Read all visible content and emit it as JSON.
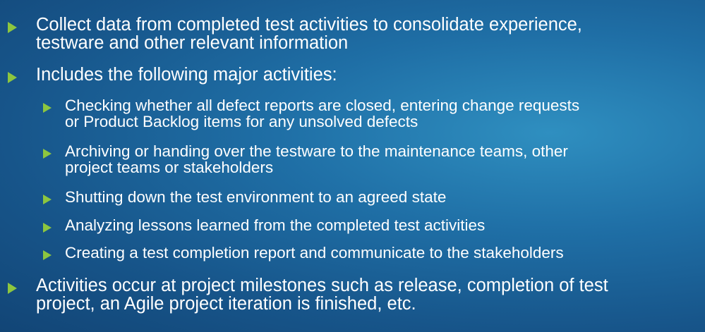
{
  "bullets": [
    {
      "text": "Collect data from completed test activities to consolidate experience,",
      "text_cont": "testware and other relevant information"
    },
    {
      "text": "Includes the following major activities:",
      "sub": [
        {
          "text": "Checking whether all defect reports are closed, entering change requests",
          "text_cont": "or Product Backlog items for any unsolved defects"
        },
        {
          "text": "Archiving or handing over the testware to the maintenance teams, other",
          "text_cont": "project teams or stakeholders"
        },
        {
          "text": "Shutting down the test environment to an agreed state"
        },
        {
          "text": "Analyzing lessons learned from the completed test activities"
        },
        {
          "text": "Creating a test completion report and communicate to the stakeholders"
        }
      ]
    },
    {
      "text": "Activities occur at project milestones such as release, completion of test",
      "text_cont": "project, an Agile project iteration is finished, etc."
    }
  ],
  "colors": {
    "bullet": "#8dc63f",
    "text": "#ffffff",
    "background": "#1b6098"
  }
}
